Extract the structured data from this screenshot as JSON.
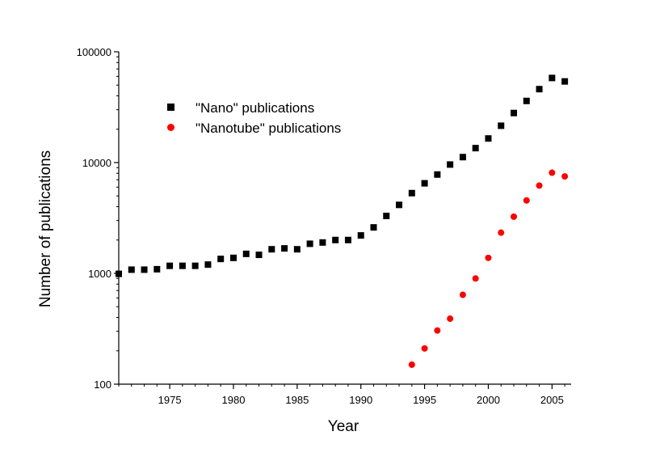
{
  "chart_data": {
    "type": "scatter",
    "title": "",
    "xlabel": "Year",
    "ylabel": "Number of publications",
    "xlim": [
      1971,
      2006.5
    ],
    "ylim": [
      100,
      100000
    ],
    "yscale": "log",
    "grid": false,
    "legend_position": "top-left",
    "x_ticks": [
      1975,
      1980,
      1985,
      1990,
      1995,
      2000,
      2005
    ],
    "x_tick_labels": [
      "1975",
      "1980",
      "1985",
      "1990",
      "1995",
      "2000",
      "2005"
    ],
    "y_ticks": [
      100,
      1000,
      10000,
      100000
    ],
    "y_tick_labels": [
      "100",
      "1000",
      "10000",
      "100000"
    ],
    "series": [
      {
        "name": "\"Nano\" publications",
        "color": "#000000",
        "marker": "square",
        "x": [
          1971,
          1972,
          1973,
          1974,
          1975,
          1976,
          1977,
          1978,
          1979,
          1980,
          1981,
          1982,
          1983,
          1984,
          1985,
          1986,
          1987,
          1988,
          1989,
          1990,
          1991,
          1992,
          1993,
          1994,
          1995,
          1996,
          1997,
          1998,
          1999,
          2000,
          2001,
          2002,
          2003,
          2004,
          2005,
          2006
        ],
        "y": [
          990,
          1080,
          1080,
          1090,
          1170,
          1170,
          1170,
          1200,
          1350,
          1380,
          1500,
          1470,
          1650,
          1680,
          1650,
          1850,
          1900,
          2000,
          2000,
          2200,
          2600,
          3300,
          4150,
          5300,
          6500,
          7800,
          9600,
          11200,
          13500,
          16500,
          21500,
          28000,
          36000,
          46000,
          58000,
          54000
        ]
      },
      {
        "name": "\"Nanotube\" publications",
        "color": "#ff0000",
        "marker": "circle",
        "x": [
          1994,
          1995,
          1996,
          1997,
          1998,
          1999,
          2000,
          2001,
          2002,
          2003,
          2004,
          2005,
          2006
        ],
        "y": [
          150,
          210,
          305,
          390,
          640,
          900,
          1380,
          2330,
          3250,
          4550,
          6200,
          8100,
          7500
        ]
      }
    ]
  }
}
